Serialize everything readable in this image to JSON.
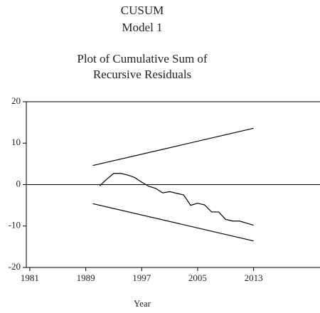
{
  "chart_data": {
    "type": "line",
    "title": "CUSUM",
    "subtitle": "Model 1",
    "plot_title": [
      "Plot of Cumulative Sum of",
      "Recursive Residuals"
    ],
    "xlabel": "Year",
    "xlim": [
      1980.5,
      2022.5
    ],
    "xticks": [
      1981,
      1989,
      1997,
      2005,
      2013
    ],
    "ylim": [
      -20,
      20
    ],
    "yticks": [
      -20,
      -10,
      0,
      10,
      20
    ],
    "reference_line": 0,
    "series": [
      {
        "color": "#000000",
        "x": [
          1990,
          2013
        ],
        "values": [
          4.6,
          13.6
        ]
      },
      {
        "color": "#000000",
        "x": [
          1991,
          1992,
          1993,
          1994,
          1995,
          1996,
          1997,
          1998,
          1999,
          2000,
          2001,
          2002,
          2003,
          2004,
          2005,
          2006,
          2007,
          2008,
          2009,
          2010,
          2011,
          2012,
          2013
        ],
        "values": [
          -0.3,
          1.3,
          2.7,
          2.7,
          2.3,
          1.7,
          0.6,
          -0.4,
          -0.9,
          -2.0,
          -1.7,
          -2.1,
          -2.5,
          -5.0,
          -4.5,
          -4.9,
          -6.6,
          -6.6,
          -8.4,
          -8.8,
          -8.8,
          -9.3,
          -9.8
        ]
      },
      {
        "color": "#000000",
        "x": [
          1990,
          2013
        ],
        "values": [
          -4.6,
          -13.6
        ]
      }
    ]
  }
}
